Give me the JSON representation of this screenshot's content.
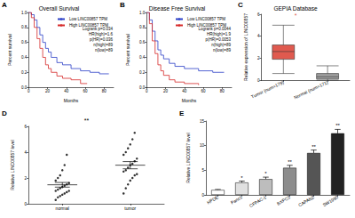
{
  "chart_data": [
    {
      "panel": "A",
      "type": "line",
      "title": "Overall Survival",
      "x_label": "Months",
      "y_label": "Percent survival",
      "xlim": [
        0,
        90
      ],
      "xticks": [
        0,
        20,
        40,
        60,
        80
      ],
      "ylim": [
        0,
        1
      ],
      "yticks": [
        {
          "value": 0,
          "label": "0.0"
        },
        0.2,
        0.4,
        0.6,
        0.8,
        {
          "value": 1,
          "label": "1.0"
        }
      ],
      "grid": false,
      "legend": "top-right",
      "line_style": "step",
      "series": [
        {
          "name": "Low LINC00857 TPM",
          "color": "#2b3fc7",
          "x": [
            0,
            3,
            6,
            9,
            12,
            15,
            18,
            21,
            24,
            30,
            36,
            45,
            55,
            65,
            75,
            85
          ],
          "values": [
            1,
            0.97,
            0.9,
            0.8,
            0.7,
            0.6,
            0.52,
            0.47,
            0.4,
            0.33,
            0.3,
            0.25,
            0.22,
            0.2,
            0.18,
            0.18
          ]
        },
        {
          "name": "High LINC00857 TPM",
          "color": "#d62a2a",
          "x": [
            0,
            3,
            6,
            9,
            12,
            15,
            18,
            21,
            24,
            30,
            36,
            45,
            55,
            62
          ],
          "values": [
            1,
            0.93,
            0.8,
            0.65,
            0.52,
            0.4,
            0.3,
            0.25,
            0.2,
            0.15,
            0.12,
            0.1,
            0.05,
            0.05
          ]
        }
      ],
      "annotations": [
        "Logrank p=0.034",
        "HR(high)=1.6",
        "p(HR)=0.036",
        "n(high)=89",
        "n(low)=89"
      ]
    },
    {
      "panel": "B",
      "type": "line",
      "title": "Disease Free Survival",
      "x_label": "Months",
      "y_label": "Percent survival",
      "xlim": [
        0,
        90
      ],
      "xticks": [
        0,
        20,
        40,
        60,
        80
      ],
      "ylim": [
        0,
        1
      ],
      "yticks": [
        {
          "value": 0,
          "label": "0.0"
        },
        0.2,
        0.4,
        0.6,
        0.8,
        {
          "value": 1,
          "label": "1.0"
        }
      ],
      "grid": false,
      "legend": "top-right",
      "line_style": "step",
      "series": [
        {
          "name": "Low LINC00857 TPM",
          "color": "#2b3fc7",
          "x": [
            0,
            3,
            6,
            9,
            12,
            15,
            18,
            24,
            30,
            40,
            55,
            70,
            82
          ],
          "values": [
            1,
            0.9,
            0.75,
            0.62,
            0.5,
            0.43,
            0.38,
            0.32,
            0.28,
            0.25,
            0.22,
            0.2,
            0.2
          ]
        },
        {
          "name": "High LINC00857 TPM",
          "color": "#d62a2a",
          "x": [
            0,
            3,
            6,
            9,
            12,
            15,
            18,
            24,
            30,
            40,
            55
          ],
          "values": [
            1,
            0.85,
            0.62,
            0.45,
            0.3,
            0.22,
            0.16,
            0.1,
            0.07,
            0.05,
            0.03
          ]
        }
      ],
      "annotations": [
        "Logrank p=0.0044",
        "HR(high)=1.9",
        "p(HR)=0.0053",
        "n(high)=89",
        "n(low)=89"
      ]
    },
    {
      "panel": "C",
      "type": "boxplot",
      "title": "GEPIA Database",
      "y_label": "Relative expression of LINC00857",
      "categories": [
        "Tumor (num=179)",
        "Normal (num=171)"
      ],
      "boxes": [
        [
          0.6,
          1.9,
          2.6,
          3.2,
          5.0
        ],
        [
          0,
          0.1,
          0.3,
          0.6,
          1.3
        ]
      ],
      "colors": [
        "#e05a4f",
        "#9e9e9e"
      ],
      "ylim": [
        0,
        6
      ],
      "yticks": [
        0,
        2,
        4,
        6
      ],
      "grid": false,
      "annotations": [
        "*"
      ]
    },
    {
      "panel": "D",
      "type": "scatter",
      "y_label": "Relative LINC00857 level",
      "categories": [
        "normal",
        "tumor"
      ],
      "groups": [
        {
          "values": [
            0.3,
            0.5,
            0.6,
            0.7,
            0.8,
            0.9,
            1.0,
            1.0,
            1.1,
            1.2,
            1.3,
            1.4,
            1.5,
            1.6,
            1.8,
            2.0,
            2.2,
            2.6,
            3.0,
            3.8
          ],
          "mean": 1.47,
          "sem": 0.18
        },
        {
          "values": [
            0.8,
            1.2,
            1.5,
            1.8,
            2.0,
            2.2,
            2.3,
            2.5,
            2.6,
            2.8,
            3.0,
            3.1,
            3.3,
            3.5,
            3.8,
            4.0,
            4.3,
            4.6,
            5.0,
            5.5
          ],
          "mean": 2.99,
          "sem": 0.28
        }
      ],
      "color": "#000000",
      "marker": "circle",
      "ylim": [
        0,
        6
      ],
      "yticks": [
        0,
        2,
        4,
        6
      ],
      "grid": false,
      "annotations": [
        "**"
      ]
    },
    {
      "panel": "E",
      "type": "bar",
      "y_label": "Relative LINC00857 level",
      "categories": [
        "HPDE",
        "Panc1",
        "CFPAC-1",
        "BXPC3",
        "CAPAN2",
        "SW1990"
      ],
      "values": [
        1,
        2.5,
        3.2,
        5.5,
        8.5,
        12.5
      ],
      "errors": [
        0.1,
        0.3,
        0.4,
        0.5,
        0.6,
        0.8
      ],
      "significance": [
        null,
        "*",
        "*",
        "**",
        "**",
        "**"
      ],
      "colors": [
        "#ffffff",
        "#e0e0e0",
        "#bdbdbd",
        "#8c8c8c",
        "#555555",
        "#222222"
      ],
      "ylim": [
        0,
        15
      ],
      "yticks": [
        0,
        5,
        10,
        15
      ],
      "grid": false
    }
  ]
}
